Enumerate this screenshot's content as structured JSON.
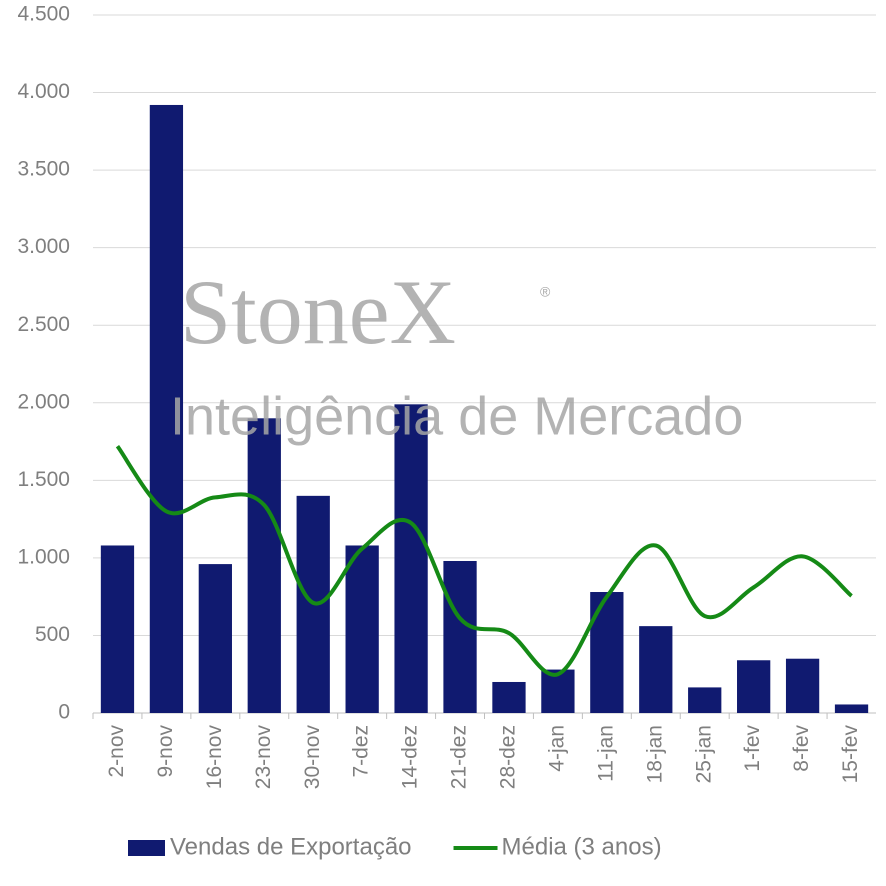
{
  "chart_data": {
    "type": "bar_line",
    "watermark": "StoneX",
    "watermark_mark": "®",
    "watermark_subtitle": "Inteligência de Mercado",
    "categories": [
      "2-nov",
      "9-nov",
      "16-nov",
      "23-nov",
      "30-nov",
      "7-dez",
      "14-dez",
      "21-dez",
      "28-dez",
      "4-jan",
      "11-jan",
      "18-jan",
      "25-jan",
      "1-fev",
      "8-fev",
      "15-fev"
    ],
    "series": [
      {
        "name": "Vendas de Exportação",
        "type": "bar",
        "color": "#101a70",
        "values": [
          1080,
          3920,
          960,
          1900,
          1400,
          1080,
          1990,
          980,
          200,
          280,
          780,
          560,
          165,
          340,
          350,
          55
        ]
      },
      {
        "name": "Média (3 anos)",
        "type": "line",
        "color": "#158a16",
        "values": [
          1720,
          1300,
          1390,
          1340,
          710,
          1060,
          1225,
          610,
          515,
          250,
          750,
          1080,
          625,
          810,
          1010,
          755
        ]
      }
    ],
    "ylim": [
      0,
      4500
    ],
    "yticks": [
      0,
      500,
      {
        "value": 1000,
        "label": "1.000"
      },
      {
        "value": 1500,
        "label": "1.500"
      },
      {
        "value": 2000,
        "label": "2.000"
      },
      {
        "value": 2500,
        "label": "2.500"
      },
      {
        "value": 3000,
        "label": "3.000"
      },
      {
        "value": 3500,
        "label": "3.500"
      },
      {
        "value": 4000,
        "label": "4.000"
      },
      {
        "value": 4500,
        "label": "4.500"
      }
    ],
    "grid": true,
    "legend": "bottom"
  }
}
